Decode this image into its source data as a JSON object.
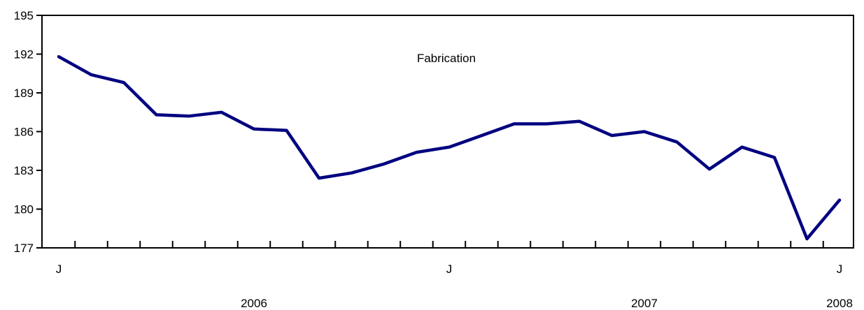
{
  "chart_data": {
    "type": "line",
    "series_label": "Fabrication",
    "ylim": [
      177,
      195
    ],
    "y_ticks": [
      177,
      180,
      183,
      186,
      189,
      192,
      195
    ],
    "x_tick_labels": [
      {
        "index": 0,
        "label": "J"
      },
      {
        "index": 12,
        "label": "J"
      },
      {
        "index": 24,
        "label": "J"
      }
    ],
    "year_labels": [
      {
        "index": 6,
        "label": "2006"
      },
      {
        "index": 18,
        "label": "2007"
      },
      {
        "index": 24,
        "label": "2008"
      }
    ],
    "minor_ticks": 25,
    "line_color": "#000080",
    "grid": false,
    "series": [
      {
        "values": [
          191.8,
          190.4,
          189.8,
          187.3,
          187.2,
          187.5,
          186.2,
          186.1,
          182.4,
          182.8,
          183.5,
          184.4,
          184.8,
          185.7,
          186.6,
          186.6,
          186.8,
          185.7,
          186.0,
          185.2,
          183.1,
          184.8,
          184.0,
          177.7,
          180.7
        ]
      }
    ]
  }
}
